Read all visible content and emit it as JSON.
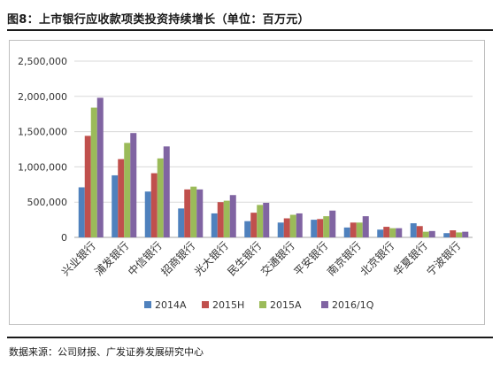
{
  "header": {
    "title": "图8：上市银行应收款项类投资持续增长（单位：百万元）"
  },
  "footer": {
    "source": "数据来源：公司财报、广发证券发展研究中心"
  },
  "chart_data": {
    "type": "bar",
    "title": "",
    "xlabel": "",
    "ylabel": "",
    "ylim": [
      0,
      2500000
    ],
    "yticks": [
      0,
      500000,
      1000000,
      1500000,
      2000000,
      2500000
    ],
    "ytick_labels": [
      "0",
      "500,000",
      "1,000,000",
      "1,500,000",
      "2,000,000",
      "2,500,000"
    ],
    "grid": true,
    "legend_position": "bottom",
    "categories": [
      "兴业银行",
      "浦发银行",
      "中信银行",
      "招商银行",
      "光大银行",
      "民生银行",
      "交通银行",
      "平安银行",
      "南京银行",
      "北京银行",
      "华夏银行",
      "宁波银行"
    ],
    "series": [
      {
        "name": "2014A",
        "color": "#4f81bd",
        "values": [
          710000,
          880000,
          650000,
          410000,
          340000,
          230000,
          210000,
          250000,
          140000,
          110000,
          200000,
          60000
        ]
      },
      {
        "name": "2015H",
        "color": "#c0504d",
        "values": [
          1440000,
          1110000,
          910000,
          680000,
          500000,
          350000,
          270000,
          260000,
          210000,
          150000,
          160000,
          100000
        ]
      },
      {
        "name": "2015A",
        "color": "#9bbb59",
        "values": [
          1840000,
          1340000,
          1120000,
          720000,
          520000,
          460000,
          320000,
          300000,
          210000,
          130000,
          80000,
          70000
        ]
      },
      {
        "name": "2016/1Q",
        "color": "#8064a2",
        "values": [
          1980000,
          1480000,
          1290000,
          680000,
          600000,
          490000,
          340000,
          380000,
          300000,
          130000,
          90000,
          80000
        ]
      }
    ]
  }
}
